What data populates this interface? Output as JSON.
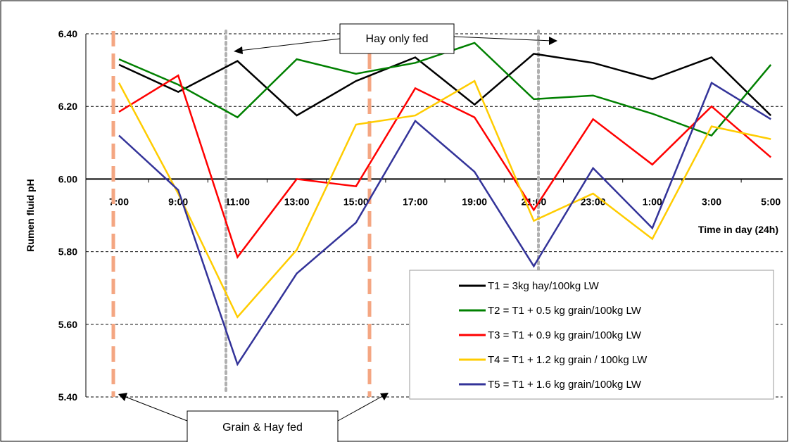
{
  "chart_data": {
    "type": "line",
    "title": "",
    "ylabel": "Rumen fluid pH",
    "xlabel": "Time in day (24h)",
    "ylim": [
      5.4,
      6.4
    ],
    "yticks": [
      "5.40",
      "5.60",
      "5.80",
      "6.00",
      "6.20",
      "6.40"
    ],
    "categories": [
      "7:00",
      "9:00",
      "11:00",
      "13:00",
      "15:00",
      "17:00",
      "19:00",
      "21:00",
      "23:00",
      "1:00",
      "3:00",
      "5:00"
    ],
    "x_axis_crosses_at": 6.0,
    "grid": "horizontal dashed",
    "legend_position": "bottom-right",
    "series": [
      {
        "name": "T1 = 3kg hay/100kg LW",
        "color": "#000000",
        "values": [
          6.315,
          6.24,
          6.325,
          6.175,
          6.27,
          6.335,
          6.205,
          6.345,
          6.32,
          6.275,
          6.335,
          6.175
        ]
      },
      {
        "name": "T2 = T1 + 0.5 kg grain/100kg LW",
        "color": "#008000",
        "values": [
          6.33,
          6.26,
          6.17,
          6.33,
          6.29,
          6.32,
          6.375,
          6.22,
          6.23,
          6.18,
          6.12,
          6.315
        ]
      },
      {
        "name": "T3 = T1 + 0.9 kg grain/100kg LW",
        "color": "#ff0000",
        "values": [
          6.185,
          6.285,
          5.785,
          6.0,
          5.98,
          6.25,
          6.17,
          5.915,
          6.165,
          6.04,
          6.2,
          6.06
        ]
      },
      {
        "name": "T4 = T1 + 1.2 kg grain / 100kg LW",
        "color": "#ffcc00",
        "values": [
          6.265,
          5.96,
          5.62,
          5.805,
          6.15,
          6.175,
          6.27,
          5.885,
          5.96,
          5.835,
          6.145,
          6.11
        ]
      },
      {
        "name": "T5 = T1 + 1.6 kg grain/100kg LW",
        "color": "#333399",
        "values": [
          6.12,
          5.97,
          5.49,
          5.74,
          5.88,
          6.16,
          6.02,
          5.76,
          6.03,
          5.865,
          6.265,
          6.165
        ]
      }
    ],
    "annotations": {
      "hay_only": "Hay only fed",
      "grain_hay": "Grain & Hay fed"
    },
    "colors": {
      "grain_marker": "#f4a682",
      "hay_marker": "#b0b0b0"
    }
  }
}
